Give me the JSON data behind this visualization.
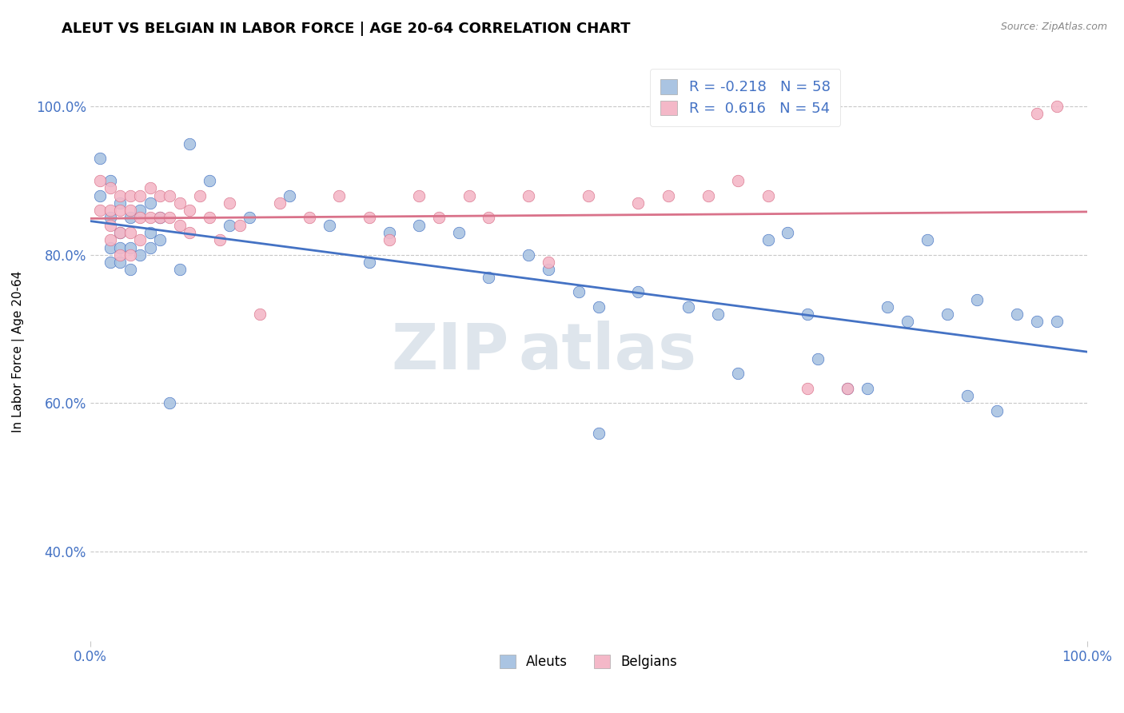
{
  "title": "ALEUT VS BELGIAN IN LABOR FORCE | AGE 20-64 CORRELATION CHART",
  "source_text": "Source: ZipAtlas.com",
  "ylabel": "In Labor Force | Age 20-64",
  "aleut_color": "#aac4e2",
  "aleut_line_color": "#4472c4",
  "belgian_color": "#f4b8c8",
  "belgian_line_color": "#d9728a",
  "aleut_R": -0.218,
  "aleut_N": 58,
  "belgian_R": 0.616,
  "belgian_N": 54,
  "watermark_ZIP": "ZIP",
  "watermark_atlas": "atlas",
  "xlim": [
    0.0,
    1.0
  ],
  "ylim": [
    0.28,
    1.06
  ],
  "yticks": [
    0.4,
    0.6,
    0.8,
    1.0
  ],
  "xticks": [
    0.0,
    1.0
  ],
  "aleut_x": [
    0.01,
    0.01,
    0.02,
    0.02,
    0.02,
    0.02,
    0.03,
    0.03,
    0.03,
    0.03,
    0.04,
    0.04,
    0.04,
    0.05,
    0.05,
    0.06,
    0.06,
    0.06,
    0.07,
    0.07,
    0.08,
    0.09,
    0.1,
    0.12,
    0.14,
    0.16,
    0.2,
    0.24,
    0.28,
    0.3,
    0.33,
    0.37,
    0.4,
    0.44,
    0.46,
    0.49,
    0.51,
    0.51,
    0.55,
    0.6,
    0.63,
    0.65,
    0.68,
    0.7,
    0.72,
    0.73,
    0.76,
    0.78,
    0.8,
    0.82,
    0.84,
    0.86,
    0.88,
    0.89,
    0.91,
    0.93,
    0.95,
    0.97
  ],
  "aleut_y": [
    0.93,
    0.88,
    0.9,
    0.85,
    0.81,
    0.79,
    0.87,
    0.83,
    0.81,
    0.79,
    0.85,
    0.81,
    0.78,
    0.86,
    0.8,
    0.87,
    0.83,
    0.81,
    0.85,
    0.82,
    0.6,
    0.78,
    0.95,
    0.9,
    0.84,
    0.85,
    0.88,
    0.84,
    0.79,
    0.83,
    0.84,
    0.83,
    0.77,
    0.8,
    0.78,
    0.75,
    0.73,
    0.56,
    0.75,
    0.73,
    0.72,
    0.64,
    0.82,
    0.83,
    0.72,
    0.66,
    0.62,
    0.62,
    0.73,
    0.71,
    0.82,
    0.72,
    0.61,
    0.74,
    0.59,
    0.72,
    0.71,
    0.71
  ],
  "belgian_x": [
    0.01,
    0.01,
    0.02,
    0.02,
    0.02,
    0.02,
    0.03,
    0.03,
    0.03,
    0.03,
    0.04,
    0.04,
    0.04,
    0.04,
    0.05,
    0.05,
    0.05,
    0.06,
    0.06,
    0.07,
    0.07,
    0.08,
    0.08,
    0.09,
    0.09,
    0.1,
    0.1,
    0.11,
    0.12,
    0.13,
    0.14,
    0.15,
    0.17,
    0.19,
    0.22,
    0.25,
    0.28,
    0.3,
    0.33,
    0.35,
    0.38,
    0.4,
    0.44,
    0.46,
    0.5,
    0.55,
    0.58,
    0.62,
    0.65,
    0.68,
    0.72,
    0.76,
    0.95,
    0.97
  ],
  "belgian_y": [
    0.9,
    0.86,
    0.89,
    0.86,
    0.84,
    0.82,
    0.88,
    0.86,
    0.83,
    0.8,
    0.88,
    0.86,
    0.83,
    0.8,
    0.88,
    0.85,
    0.82,
    0.89,
    0.85,
    0.88,
    0.85,
    0.88,
    0.85,
    0.87,
    0.84,
    0.86,
    0.83,
    0.88,
    0.85,
    0.82,
    0.87,
    0.84,
    0.72,
    0.87,
    0.85,
    0.88,
    0.85,
    0.82,
    0.88,
    0.85,
    0.88,
    0.85,
    0.88,
    0.79,
    0.88,
    0.87,
    0.88,
    0.88,
    0.9,
    0.88,
    0.62,
    0.62,
    0.99,
    1.0
  ]
}
